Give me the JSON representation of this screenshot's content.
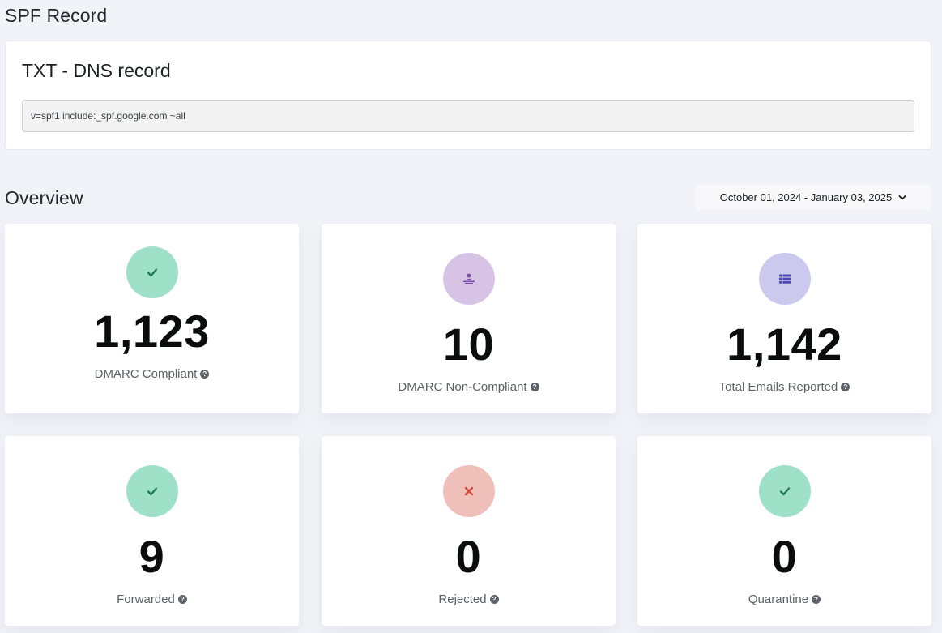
{
  "spf_section": {
    "title": "SPF Record",
    "card_title": "TXT - DNS record",
    "record_value": "v=spf1 include:_spf.google.com ~all"
  },
  "overview": {
    "title": "Overview",
    "date_range": "October 01, 2024 - January 03, 2025"
  },
  "stats": [
    {
      "value": "1,123",
      "label": "DMARC Compliant",
      "icon": "check-icon",
      "icon_bg": "#9fe1c8",
      "icon_color": "#1f7a55"
    },
    {
      "value": "10",
      "label": "DMARC Non-Compliant",
      "icon": "user-desk-icon",
      "icon_bg": "#d7c4e4",
      "icon_color": "#7a4aa6"
    },
    {
      "value": "1,142",
      "label": "Total Emails Reported",
      "icon": "list-icon",
      "icon_bg": "#cbc9ee",
      "icon_color": "#4f46b8"
    },
    {
      "value": "9",
      "label": "Forwarded",
      "icon": "check-icon",
      "icon_bg": "#9fe1c8",
      "icon_color": "#1f7a55"
    },
    {
      "value": "0",
      "label": "Rejected",
      "icon": "x-icon",
      "icon_bg": "#efc0ba",
      "icon_color": "#d2473b"
    },
    {
      "value": "0",
      "label": "Quarantine",
      "icon": "check-icon",
      "icon_bg": "#9fe1c8",
      "icon_color": "#1f7a55"
    }
  ]
}
